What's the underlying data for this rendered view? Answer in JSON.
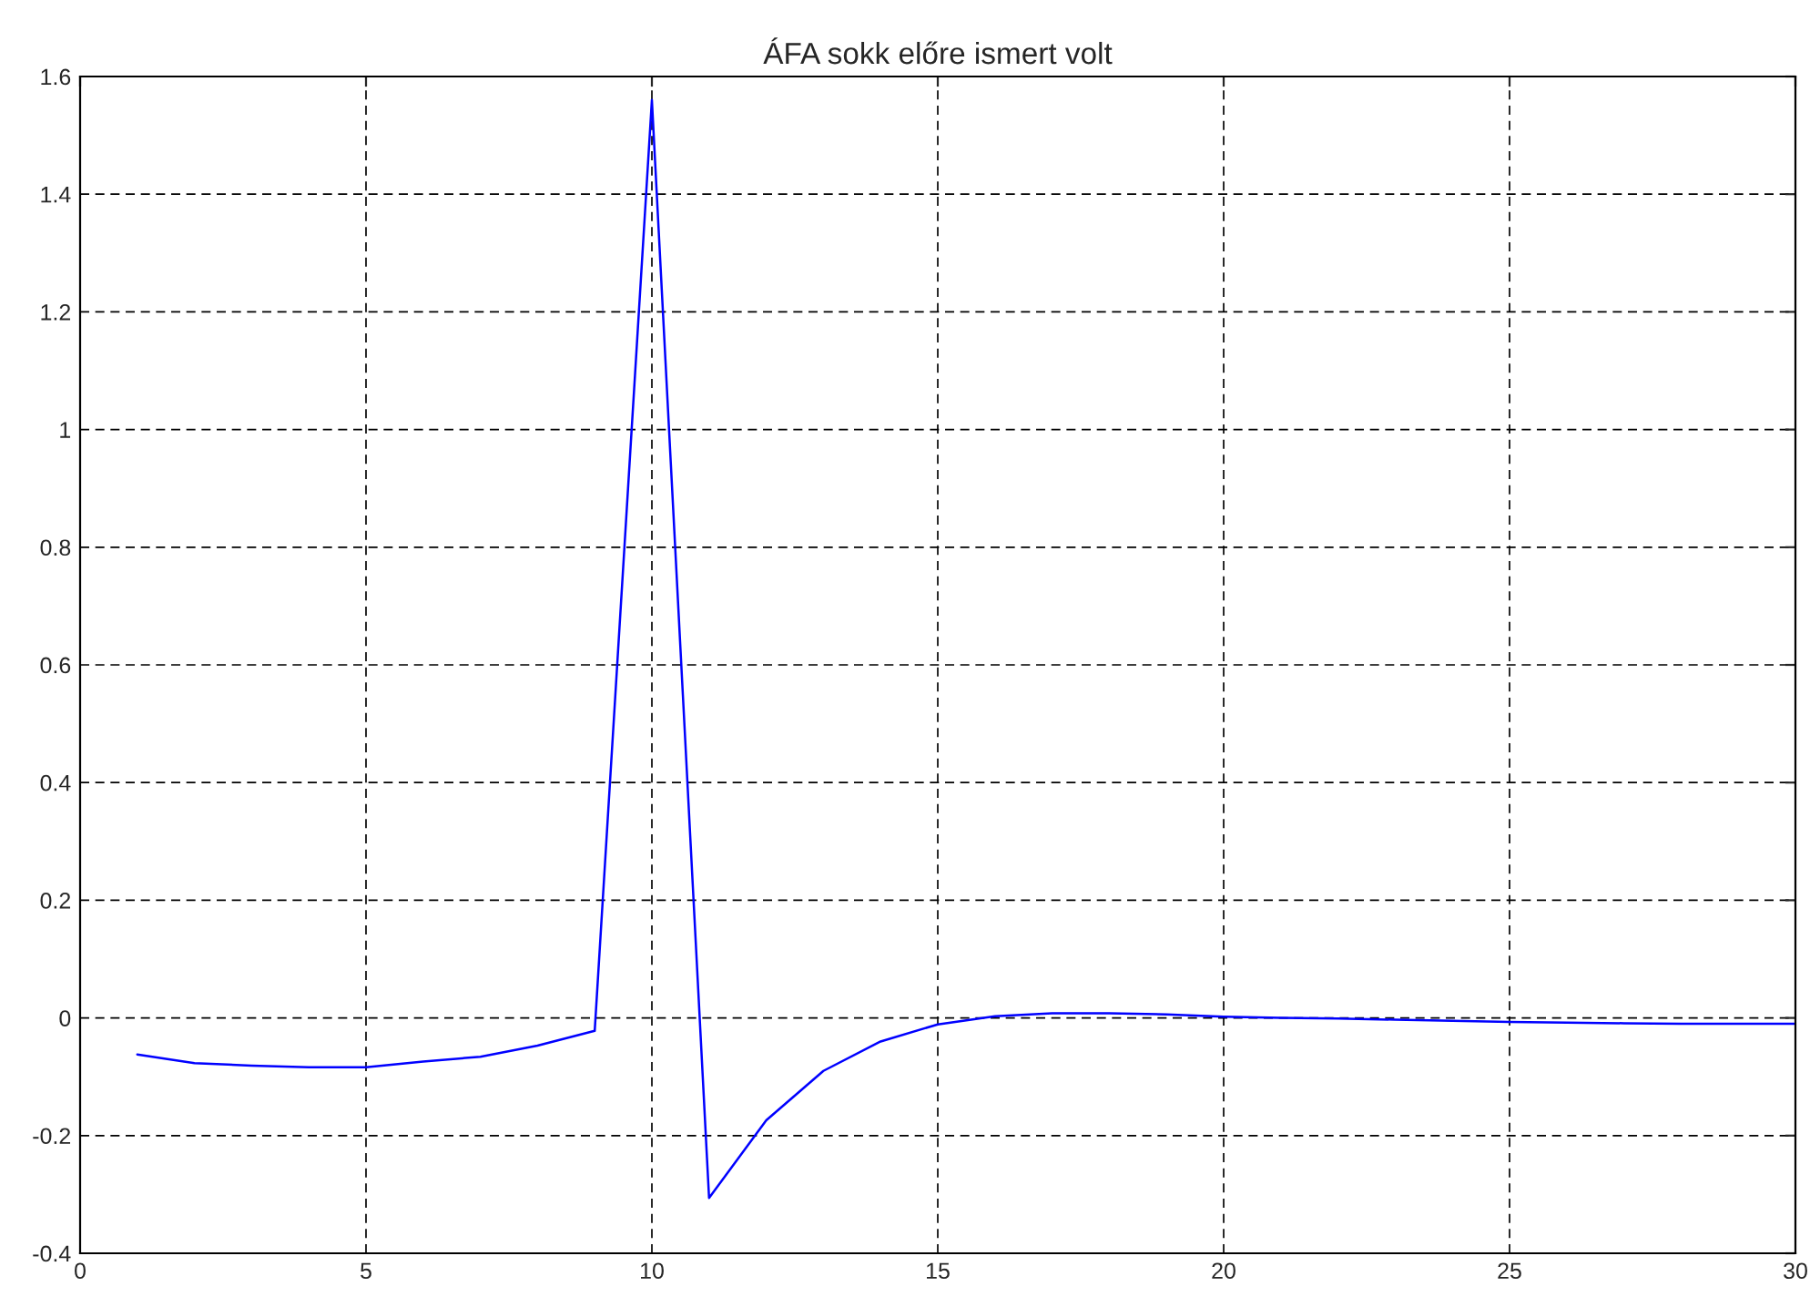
{
  "chart_data": {
    "type": "line",
    "title": "ÁFA sokk előre ismert volt",
    "x": [
      1,
      2,
      3,
      4,
      5,
      6,
      7,
      8,
      9,
      10,
      11,
      12,
      13,
      14,
      15,
      16,
      17,
      18,
      19,
      20,
      21,
      22,
      23,
      24,
      25,
      26,
      27,
      28,
      29,
      30
    ],
    "series": [
      {
        "color": "#0000ff",
        "values": [
          -0.062,
          -0.077,
          -0.081,
          -0.084,
          -0.084,
          -0.074,
          -0.066,
          -0.047,
          -0.022,
          1.56,
          -0.306,
          -0.174,
          -0.09,
          -0.04,
          -0.011,
          0.003,
          0.008,
          0.008,
          0.006,
          0.002,
          0.0,
          -0.001,
          -0.003,
          -0.005,
          -0.007,
          -0.008,
          -0.009,
          -0.01,
          -0.01,
          -0.01
        ]
      }
    ],
    "xlim": [
      0,
      30
    ],
    "xticks": [
      0,
      5,
      10,
      15,
      20,
      25,
      30
    ],
    "ylim": [
      -0.4,
      1.6
    ],
    "yticks": [
      -0.4,
      -0.2,
      0,
      0.2,
      0.4,
      0.6,
      0.8,
      1,
      1.2,
      1.4,
      1.6
    ],
    "grid": true,
    "line_style": "solid",
    "marker": "none"
  }
}
